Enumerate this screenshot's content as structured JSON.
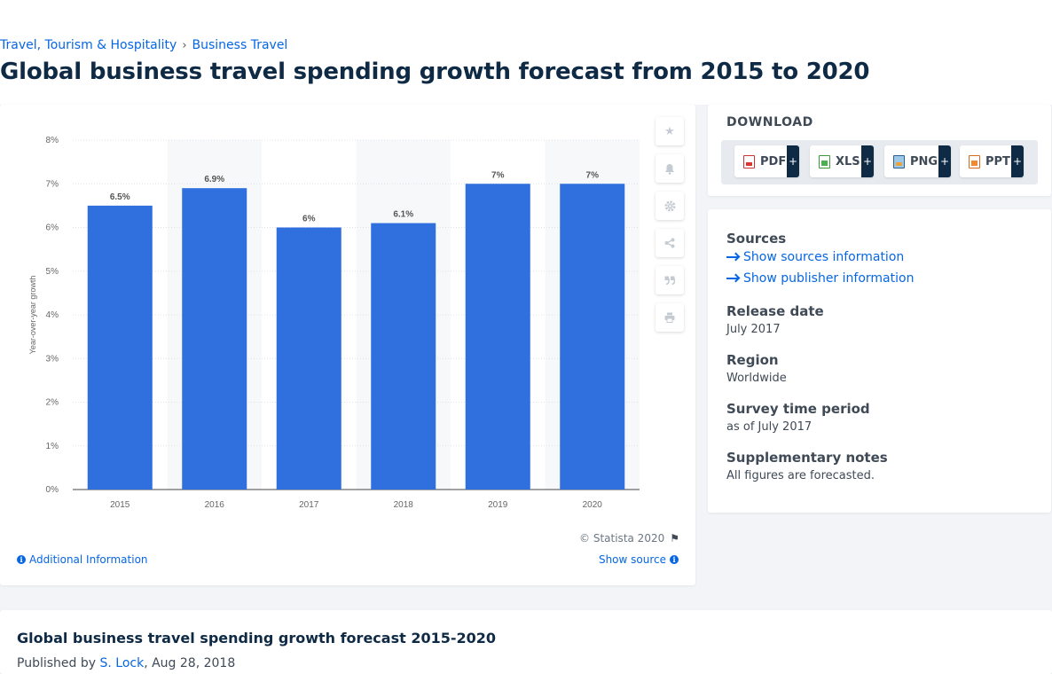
{
  "breadcrumb": [
    "Travel, Tourism & Hospitality",
    "Business Travel"
  ],
  "page_title": "Global business travel spending growth forecast from 2015 to 2020",
  "chart_data": {
    "type": "bar",
    "categories": [
      "2015",
      "2016",
      "2017",
      "2018",
      "2019",
      "2020"
    ],
    "values": [
      6.5,
      6.9,
      6.0,
      6.1,
      7.0,
      7.0
    ],
    "data_labels": [
      "6.5%",
      "6.9%",
      "6%",
      "6.1%",
      "7%",
      "7%"
    ],
    "ylabel": "Year-over-year growth",
    "ylim": [
      0,
      8
    ],
    "yticks": [
      "0%",
      "1%",
      "2%",
      "3%",
      "4%",
      "5%",
      "6%",
      "7%",
      "8%"
    ],
    "bar_color": "#2f6fde",
    "grid": true
  },
  "chart_footer": {
    "copyright": "© Statista 2020",
    "additional_info": "Additional Information",
    "show_source": "Show source"
  },
  "tools": [
    "star-icon",
    "bell-icon",
    "gear-icon",
    "share-icon",
    "quote-icon",
    "print-icon"
  ],
  "download": {
    "heading": "DOWNLOAD",
    "buttons": [
      {
        "label": "PDF",
        "icon": "pdf-file-icon"
      },
      {
        "label": "XLS",
        "icon": "xls-file-icon"
      },
      {
        "label": "PNG",
        "icon": "png-file-icon"
      },
      {
        "label": "PPT",
        "icon": "ppt-file-icon"
      }
    ],
    "plus": "+"
  },
  "info": {
    "sources_label": "Sources",
    "show_sources": "Show sources information",
    "show_publisher": "Show publisher information",
    "release_label": "Release date",
    "release_value": "July 2017",
    "region_label": "Region",
    "region_value": "Worldwide",
    "survey_label": "Survey time period",
    "survey_value": "as of July 2017",
    "notes_label": "Supplementary notes",
    "notes_value": "All figures are forecasted."
  },
  "footer": {
    "title": "Global business travel spending growth forecast 2015-2020",
    "published_prefix": "Published by ",
    "author": "S. Lock",
    "date": ", Aug 28, 2018"
  },
  "colors": {
    "accent": "#0666e5",
    "title": "#0f2a45",
    "bar": "#2f6fde"
  }
}
